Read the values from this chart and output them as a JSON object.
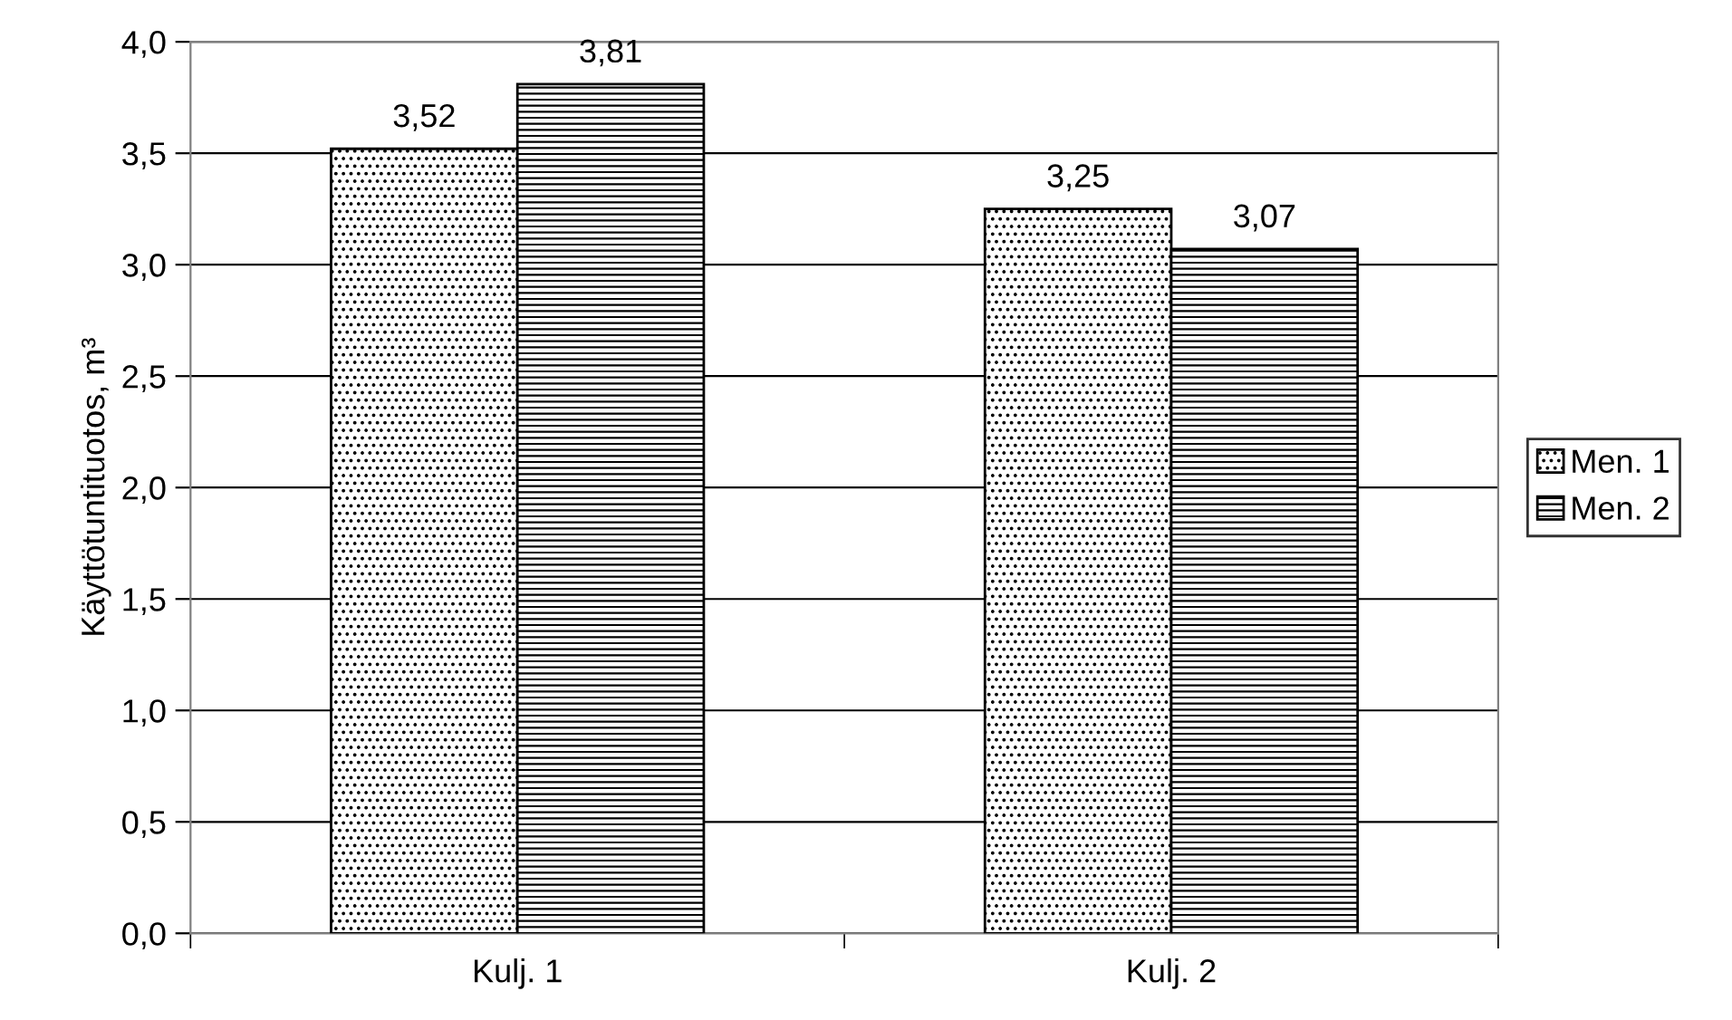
{
  "chart_data": {
    "type": "bar",
    "ylabel": "Käyttötuntituotos, m³",
    "categories": [
      "Kulj. 1",
      "Kulj. 2"
    ],
    "series": [
      {
        "name": "Men. 1",
        "color": "#000000",
        "values": [
          3.52,
          3.25
        ],
        "value_labels": [
          "3,52",
          "3,25"
        ]
      },
      {
        "name": "Men. 2",
        "color": "#000000",
        "values": [
          3.81,
          3.07
        ],
        "value_labels": [
          "3,81",
          "3,07"
        ]
      }
    ],
    "ylim": [
      0,
      4
    ],
    "yticks": [
      {
        "value": 0,
        "label": "0,0"
      },
      {
        "value": 0.5,
        "label": "0,5"
      },
      {
        "value": 1,
        "label": "1,0"
      },
      {
        "value": 1.5,
        "label": "1,5"
      },
      {
        "value": 2,
        "label": "2,0"
      },
      {
        "value": 2.5,
        "label": "2,5"
      },
      {
        "value": 3,
        "label": "3,0"
      },
      {
        "value": 3.5,
        "label": "3,5"
      },
      {
        "value": 4,
        "label": "4,0"
      }
    ],
    "grid": "y",
    "legend": "right"
  }
}
